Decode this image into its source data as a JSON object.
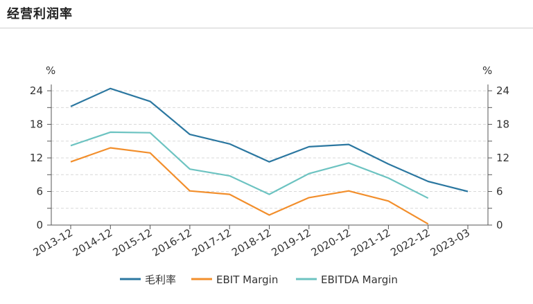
{
  "page": {
    "title": "经营利润率"
  },
  "chart_data": {
    "type": "line",
    "title": "",
    "x": [
      "2013-12",
      "2014-12",
      "2015-12",
      "2016-12",
      "2017-12",
      "2018-12",
      "2019-12",
      "2020-12",
      "2021-12",
      "2022-12",
      "2023-03"
    ],
    "y_unit_left": "%",
    "y_unit_right": "%",
    "ylim": [
      0,
      25
    ],
    "yticks": [
      0,
      6,
      12,
      18,
      24
    ],
    "grid": "horizontal dashed",
    "legend_position": "bottom",
    "series": [
      {
        "name": "毛利率",
        "color": "#2b77a0",
        "values": [
          21.2,
          24.4,
          22.1,
          16.2,
          14.5,
          11.3,
          14.0,
          14.4,
          10.9,
          7.8,
          6.0
        ]
      },
      {
        "name": "EBIT Margin",
        "color": "#f28e2b",
        "values": [
          11.3,
          13.8,
          12.9,
          6.1,
          5.5,
          1.8,
          4.9,
          6.1,
          4.3,
          0.2,
          null
        ]
      },
      {
        "name": "EBITDA Margin",
        "color": "#6cc3c1",
        "values": [
          14.2,
          16.6,
          16.5,
          10.0,
          8.8,
          5.5,
          9.2,
          11.1,
          8.4,
          4.8,
          null
        ]
      }
    ]
  }
}
